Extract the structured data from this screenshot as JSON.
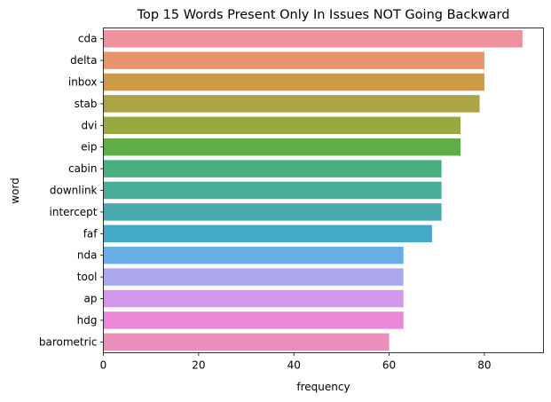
{
  "chart_data": {
    "type": "bar",
    "orientation": "horizontal",
    "title": "Top 15 Words Present Only In Issues NOT Going Backward",
    "xlabel": "frequency",
    "ylabel": "word",
    "xlim": [
      0,
      92.4
    ],
    "xticks": [
      0,
      20,
      40,
      60,
      80
    ],
    "grid": false,
    "categories": [
      "cda",
      "delta",
      "inbox",
      "stab",
      "dvi",
      "eip",
      "cabin",
      "downlink",
      "intercept",
      "faf",
      "nda",
      "tool",
      "ap",
      "hdg",
      "barometric"
    ],
    "values": [
      88,
      80,
      80,
      79,
      75,
      75,
      71,
      71,
      71,
      69,
      63,
      63,
      63,
      63,
      60
    ],
    "colors": [
      "#f0919e",
      "#e7956f",
      "#cd9a45",
      "#aba344",
      "#98a93f",
      "#5fae47",
      "#47b080",
      "#48ad99",
      "#46aaaf",
      "#43a9c6",
      "#69aee6",
      "#a9a8ed",
      "#d296eb",
      "#ec88d8",
      "#e98fba"
    ]
  }
}
